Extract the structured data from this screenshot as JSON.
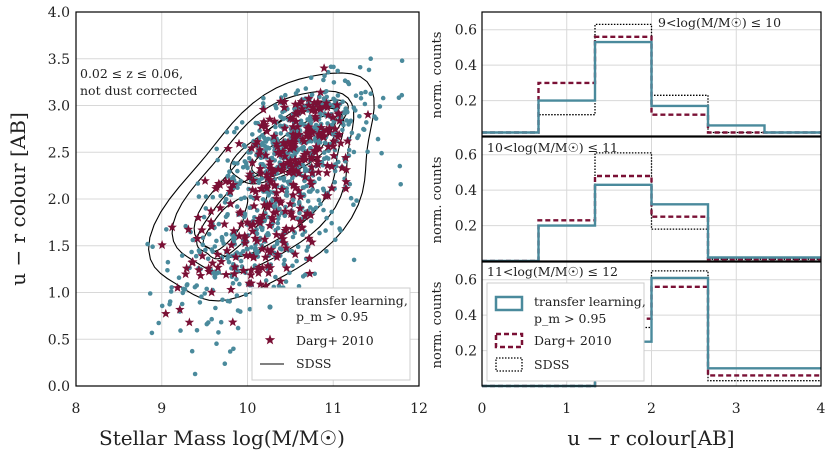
{
  "colors": {
    "transfer": "#4a8a9c",
    "darg": "#7a1035",
    "sdss": "#000000"
  },
  "chart_data": [
    {
      "type": "scatter",
      "xlabel": "Stellar Mass log(M/M☉)",
      "ylabel": "u − r colour [AB]",
      "xlim": [
        8,
        12
      ],
      "ylim": [
        0.0,
        4.0
      ],
      "xticks": [
        "8",
        "9",
        "10",
        "11",
        "12"
      ],
      "yticks": [
        "0.0",
        "0.5",
        "1.0",
        "1.5",
        "2.0",
        "2.5",
        "3.0",
        "3.5",
        "4.0"
      ],
      "annotation": [
        "0.02 ≤ z ≤ 0.06,",
        "not dust corrected"
      ],
      "series": [
        {
          "name": "transfer learning, p_m > 0.95",
          "marker": "dot",
          "clusters": [
            {
              "cx": 10.25,
              "cy": 1.8,
              "sx": 0.55,
              "sy": 0.6,
              "n": 450
            },
            {
              "cx": 10.6,
              "cy": 2.65,
              "sx": 0.4,
              "sy": 0.3,
              "n": 350
            }
          ]
        },
        {
          "name": "Darg+ 2010",
          "marker": "star",
          "clusters": [
            {
              "cx": 10.15,
              "cy": 1.7,
              "sx": 0.45,
              "sy": 0.45,
              "n": 160
            },
            {
              "cx": 10.6,
              "cy": 2.6,
              "sx": 0.35,
              "sy": 0.3,
              "n": 160
            }
          ]
        }
      ],
      "contours": [
        {
          "name": "SDSS",
          "level": 1,
          "rings": [
            {
              "cx": 10.55,
              "cy": 2.55,
              "rx": 0.55,
              "ry": 0.18,
              "rot": 32
            },
            {
              "cx": 9.75,
              "cy": 1.72,
              "rx": 0.35,
              "ry": 0.14,
              "rot": 50
            }
          ]
        },
        {
          "name": "SDSS",
          "level": 2,
          "rings": [
            {
              "cx": 10.5,
              "cy": 2.6,
              "rx": 0.75,
              "ry": 0.28,
              "rot": 30
            },
            {
              "cx": 9.85,
              "cy": 1.8,
              "rx": 0.55,
              "ry": 0.25,
              "rot": 48
            }
          ]
        },
        {
          "name": "SDSS",
          "level": 3,
          "rings": [
            {
              "cx": 10.3,
              "cy": 2.15,
              "rx": 1.05,
              "ry": 0.5,
              "rot": 42
            }
          ]
        },
        {
          "name": "SDSS",
          "level": 4,
          "rings": [
            {
              "cx": 10.25,
              "cy": 2.15,
              "rx": 1.25,
              "ry": 0.68,
              "rot": 42
            }
          ]
        },
        {
          "name": "SDSS",
          "level": 5,
          "rings": [
            {
              "cx": 10.25,
              "cy": 2.1,
              "rx": 1.55,
              "ry": 0.85,
              "rot": 42
            }
          ]
        }
      ],
      "legend": {
        "placement": "bottom-right",
        "entries": [
          {
            "label": [
              "transfer learning,",
              "p_m > 0.95"
            ],
            "marker": "dot"
          },
          {
            "label": [
              "Darg+ 2010"
            ],
            "marker": "star"
          },
          {
            "label": [
              "SDSS"
            ],
            "marker": "line"
          }
        ]
      }
    },
    {
      "type": "step-histogram",
      "xlabel": "u − r colour[AB]",
      "ylabel": "norm. counts",
      "xlim": [
        0,
        4
      ],
      "ylim": [
        0,
        0.7
      ],
      "xticks": [
        "0",
        "1",
        "2",
        "3",
        "4"
      ],
      "yticks": [
        "0.2",
        "0.4",
        "0.6"
      ],
      "bin_edges": [
        0,
        0.667,
        1.333,
        2.0,
        2.667,
        3.333,
        4.0
      ],
      "panels": [
        {
          "label": "9<log(M/M☉) ≤ 10",
          "series": [
            {
              "name": "transfer learning",
              "values": [
                0.02,
                0.2,
                0.53,
                0.17,
                0.06,
                0.02
              ]
            },
            {
              "name": "Darg+ 2010",
              "values": [
                0.02,
                0.3,
                0.56,
                0.12,
                0.02,
                0.02
              ]
            },
            {
              "name": "SDSS",
              "values": [
                0.02,
                0.12,
                0.63,
                0.23,
                0.02,
                0.02
              ]
            }
          ]
        },
        {
          "label": "10<log(M/M☉) ≤ 11",
          "series": [
            {
              "name": "transfer learning",
              "values": [
                0.0,
                0.2,
                0.43,
                0.32,
                0.02,
                0.02
              ]
            },
            {
              "name": "Darg+ 2010",
              "values": [
                0.0,
                0.23,
                0.48,
                0.25,
                0.01,
                0.01
              ]
            },
            {
              "name": "SDSS",
              "values": [
                0.0,
                0.2,
                0.61,
                0.18,
                0.01,
                0.01
              ]
            }
          ]
        },
        {
          "label": "11<log(M/M☉) ≤ 12",
          "series": [
            {
              "name": "transfer learning",
              "values": [
                0.0,
                0.0,
                0.25,
                0.61,
                0.1,
                0.1
              ]
            },
            {
              "name": "Darg+ 2010",
              "values": [
                0.0,
                0.0,
                0.38,
                0.56,
                0.06,
                0.06
              ]
            },
            {
              "name": "SDSS",
              "values": [
                0.0,
                0.0,
                0.33,
                0.65,
                0.03,
                0.03
              ]
            }
          ]
        }
      ],
      "legend": {
        "placement": "bottom-left of bottom panel",
        "entries": [
          {
            "label": [
              "transfer learning,",
              "p_m > 0.95"
            ],
            "style": "solid"
          },
          {
            "label": [
              "Darg+ 2010"
            ],
            "style": "dashed"
          },
          {
            "label": [
              "SDSS"
            ],
            "style": "dotted"
          }
        ]
      }
    }
  ]
}
